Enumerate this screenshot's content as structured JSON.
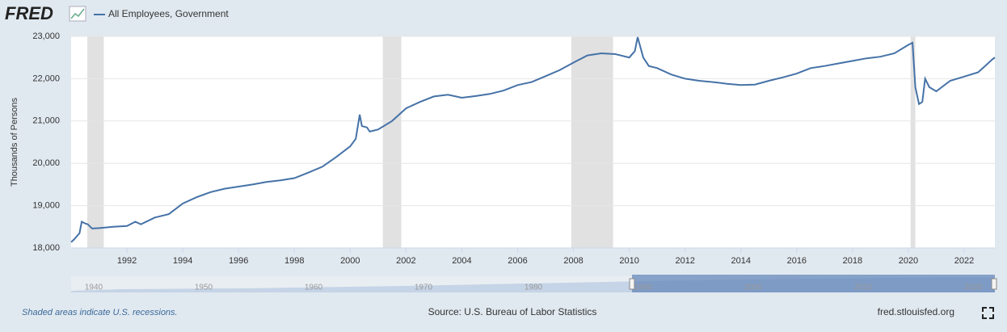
{
  "header": {
    "logo": "FRED"
  },
  "chart_data": {
    "type": "line",
    "y_label": "Thousands of Persons",
    "xlim": [
      1990,
      2023.1
    ],
    "ylim": [
      18000,
      23000
    ],
    "xticks": [
      1992,
      1994,
      1996,
      1998,
      2000,
      2002,
      2004,
      2006,
      2008,
      2010,
      2012,
      2014,
      2016,
      2018,
      2020,
      2022
    ],
    "yticks": [
      {
        "value": 18000,
        "label": "18,000"
      },
      {
        "value": 19000,
        "label": "19,000"
      },
      {
        "value": 20000,
        "label": "20,000"
      },
      {
        "value": 21000,
        "label": "21,000"
      },
      {
        "value": 22000,
        "label": "22,000"
      },
      {
        "value": 23000,
        "label": "23,000"
      }
    ],
    "grid": true,
    "recessions": [
      [
        1990.58,
        1991.17
      ],
      [
        2001.17,
        2001.83
      ],
      [
        2007.92,
        2009.42
      ],
      [
        2020.08,
        2020.25
      ]
    ],
    "x": [
      1990.0,
      1990.1,
      1990.3,
      1990.38,
      1990.5,
      1990.6,
      1990.75,
      1991.0,
      1991.5,
      1992.0,
      1992.3,
      1992.5,
      1993.0,
      1993.5,
      1993.7,
      1994.0,
      1994.5,
      1995.0,
      1995.5,
      1996.0,
      1996.5,
      1997.0,
      1997.5,
      1998.0,
      1998.5,
      1999.0,
      1999.5,
      2000.0,
      2000.2,
      2000.34,
      2000.42,
      2000.6,
      2000.7,
      2001.0,
      2001.5,
      2002.0,
      2002.5,
      2003.0,
      2003.5,
      2004.0,
      2004.5,
      2005.0,
      2005.5,
      2006.0,
      2006.5,
      2007.0,
      2007.5,
      2008.0,
      2008.5,
      2009.0,
      2009.5,
      2010.0,
      2010.2,
      2010.3,
      2010.5,
      2010.7,
      2011.0,
      2011.5,
      2012.0,
      2012.5,
      2013.0,
      2013.5,
      2014.0,
      2014.5,
      2015.0,
      2015.5,
      2016.0,
      2016.5,
      2017.0,
      2017.5,
      2018.0,
      2018.5,
      2019.0,
      2019.5,
      2020.0,
      2020.15,
      2020.25,
      2020.38,
      2020.5,
      2020.6,
      2020.75,
      2021.0,
      2021.5,
      2022.0,
      2022.5,
      2022.75,
      2023.0,
      2023.1
    ],
    "series": [
      {
        "name": "All Employees, Government",
        "color": "#4572a7",
        "values": [
          18140,
          18200,
          18350,
          18620,
          18580,
          18560,
          18460,
          18470,
          18500,
          18520,
          18620,
          18560,
          18720,
          18800,
          18900,
          19050,
          19200,
          19320,
          19400,
          19450,
          19500,
          19560,
          19600,
          19650,
          19780,
          19920,
          20150,
          20400,
          20580,
          21150,
          20880,
          20850,
          20750,
          20800,
          21000,
          21300,
          21450,
          21580,
          21620,
          21550,
          21590,
          21640,
          21720,
          21850,
          21920,
          22060,
          22200,
          22380,
          22550,
          22600,
          22580,
          22500,
          22650,
          22980,
          22500,
          22300,
          22250,
          22100,
          22000,
          21950,
          21920,
          21880,
          21850,
          21860,
          21950,
          22030,
          22120,
          22250,
          22300,
          22360,
          22420,
          22480,
          22520,
          22600,
          22800,
          22850,
          21800,
          21400,
          21450,
          22000,
          21800,
          21700,
          21950,
          22050,
          22150,
          22300,
          22450,
          22500
        ]
      }
    ]
  },
  "navigator": {
    "labels": [
      "1940",
      "1950",
      "1960",
      "1970",
      "1980",
      "1990",
      "2000",
      "2010",
      "2020"
    ]
  },
  "footer": {
    "note": "Shaded areas indicate U.S. recessions.",
    "source": "Source: U.S. Bureau of Labor Statistics",
    "site": "fred.stlouisfed.org"
  }
}
